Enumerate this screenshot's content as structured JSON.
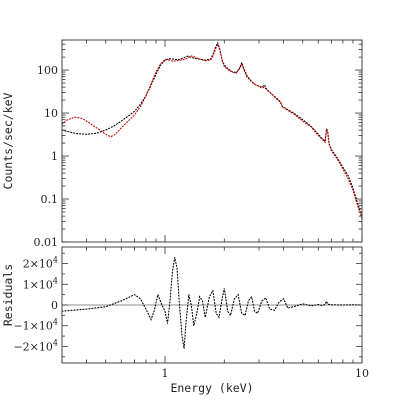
{
  "chart_data": [
    {
      "type": "line",
      "panel": "spectrum",
      "ylabel": "Counts/sec/keV",
      "x_scale": "log",
      "y_scale": "log",
      "xlim": [
        0.3,
        10
      ],
      "ylim": [
        0.01,
        500
      ],
      "y_ticks": [
        0.01,
        0.1,
        1,
        10,
        100
      ],
      "y_tick_labels": [
        "0.01",
        "0.1",
        "1",
        "10",
        "100"
      ],
      "series": [
        {
          "color": "#000000",
          "style": "dotted",
          "points": [
            [
              0.3,
              4.0
            ],
            [
              0.33,
              3.6
            ],
            [
              0.36,
              3.3
            ],
            [
              0.4,
              3.2
            ],
            [
              0.45,
              3.4
            ],
            [
              0.5,
              4.0
            ],
            [
              0.55,
              5.0
            ],
            [
              0.6,
              6.5
            ],
            [
              0.65,
              8.5
            ],
            [
              0.7,
              11
            ],
            [
              0.75,
              16
            ],
            [
              0.8,
              25
            ],
            [
              0.85,
              45
            ],
            [
              0.9,
              80
            ],
            [
              0.95,
              130
            ],
            [
              1.0,
              170
            ],
            [
              1.05,
              185
            ],
            [
              1.1,
              180
            ],
            [
              1.15,
              175
            ],
            [
              1.2,
              180
            ],
            [
              1.25,
              195
            ],
            [
              1.3,
              210
            ],
            [
              1.35,
              200
            ],
            [
              1.4,
              190
            ],
            [
              1.45,
              185
            ],
            [
              1.5,
              180
            ],
            [
              1.6,
              170
            ],
            [
              1.7,
              180
            ],
            [
              1.75,
              230
            ],
            [
              1.8,
              330
            ],
            [
              1.85,
              430
            ],
            [
              1.9,
              300
            ],
            [
              1.95,
              170
            ],
            [
              2.0,
              130
            ],
            [
              2.1,
              105
            ],
            [
              2.2,
              90
            ],
            [
              2.3,
              88
            ],
            [
              2.4,
              110
            ],
            [
              2.45,
              150
            ],
            [
              2.5,
              115
            ],
            [
              2.6,
              75
            ],
            [
              2.7,
              60
            ],
            [
              2.8,
              50
            ],
            [
              2.9,
              45
            ],
            [
              3.0,
              42
            ],
            [
              3.1,
              40
            ],
            [
              3.2,
              45
            ],
            [
              3.3,
              35
            ],
            [
              3.5,
              27
            ],
            [
              3.7,
              22
            ],
            [
              3.85,
              18
            ],
            [
              3.95,
              14
            ],
            [
              4.2,
              12
            ],
            [
              4.5,
              10
            ],
            [
              5.0,
              7
            ],
            [
              5.5,
              5
            ],
            [
              6.0,
              3.2
            ],
            [
              6.3,
              2.5
            ],
            [
              6.5,
              2.2
            ],
            [
              6.6,
              4.2
            ],
            [
              6.7,
              3.8
            ],
            [
              6.8,
              2.0
            ],
            [
              7.0,
              1.4
            ],
            [
              7.5,
              0.9
            ],
            [
              8.0,
              0.55
            ],
            [
              8.5,
              0.35
            ],
            [
              9.0,
              0.18
            ],
            [
              9.5,
              0.08
            ],
            [
              10.0,
              0.04
            ]
          ]
        },
        {
          "color": "#cc0000",
          "style": "dotted",
          "points": [
            [
              0.3,
              5.5
            ],
            [
              0.32,
              7.0
            ],
            [
              0.35,
              8.0
            ],
            [
              0.38,
              7.5
            ],
            [
              0.4,
              6.5
            ],
            [
              0.45,
              4.5
            ],
            [
              0.5,
              3.2
            ],
            [
              0.53,
              2.8
            ],
            [
              0.56,
              3.2
            ],
            [
              0.6,
              4.5
            ],
            [
              0.65,
              6.5
            ],
            [
              0.7,
              9
            ],
            [
              0.75,
              14
            ],
            [
              0.8,
              25
            ],
            [
              0.85,
              48
            ],
            [
              0.9,
              90
            ],
            [
              0.95,
              140
            ],
            [
              1.0,
              175
            ],
            [
              1.05,
              170
            ],
            [
              1.1,
              160
            ],
            [
              1.15,
              165
            ],
            [
              1.2,
              170
            ],
            [
              1.25,
              175
            ],
            [
              1.3,
              190
            ],
            [
              1.35,
              215
            ],
            [
              1.4,
              205
            ],
            [
              1.45,
              190
            ],
            [
              1.5,
              180
            ],
            [
              1.6,
              165
            ],
            [
              1.7,
              170
            ],
            [
              1.75,
              210
            ],
            [
              1.8,
              300
            ],
            [
              1.85,
              400
            ],
            [
              1.9,
              290
            ],
            [
              1.95,
              170
            ],
            [
              2.0,
              120
            ],
            [
              2.1,
              100
            ],
            [
              2.2,
              90
            ],
            [
              2.3,
              85
            ],
            [
              2.4,
              115
            ],
            [
              2.45,
              140
            ],
            [
              2.5,
              110
            ],
            [
              2.6,
              70
            ],
            [
              2.7,
              58
            ],
            [
              2.8,
              50
            ],
            [
              2.9,
              45
            ],
            [
              3.0,
              42
            ],
            [
              3.1,
              38
            ],
            [
              3.2,
              40
            ],
            [
              3.3,
              34
            ],
            [
              3.5,
              27
            ],
            [
              3.7,
              21
            ],
            [
              3.85,
              19
            ],
            [
              3.95,
              14
            ],
            [
              4.2,
              11.5
            ],
            [
              4.5,
              9.5
            ],
            [
              5.0,
              6.5
            ],
            [
              5.5,
              4.8
            ],
            [
              6.0,
              3.0
            ],
            [
              6.3,
              2.4
            ],
            [
              6.5,
              2.1
            ],
            [
              6.6,
              4.0
            ],
            [
              6.7,
              3.5
            ],
            [
              6.8,
              1.9
            ],
            [
              7.0,
              1.3
            ],
            [
              7.5,
              0.85
            ],
            [
              8.0,
              0.5
            ],
            [
              8.5,
              0.3
            ],
            [
              9.0,
              0.16
            ],
            [
              9.5,
              0.07
            ],
            [
              10.0,
              0.035
            ]
          ]
        }
      ]
    },
    {
      "type": "line",
      "panel": "residuals",
      "xlabel": "Energy (keV)",
      "ylabel": "Residuals",
      "x_scale": "log",
      "xlim": [
        0.3,
        10
      ],
      "ylim": [
        -28000,
        28000
      ],
      "x_ticks": [
        1,
        10
      ],
      "x_tick_labels": [
        "1",
        "10"
      ],
      "y_ticks": [
        {
          "value": 20000,
          "mantissa": "2×10",
          "exp": "4"
        },
        {
          "value": 10000,
          "mantissa": "1×10",
          "exp": "4"
        },
        {
          "value": 0,
          "mantissa": "0",
          "exp": ""
        },
        {
          "value": -10000,
          "mantissa": "−1×10",
          "exp": "4"
        },
        {
          "value": -20000,
          "mantissa": "−2×10",
          "exp": "4"
        }
      ],
      "series": [
        {
          "color": "#000000",
          "style": "dotted",
          "points": [
            [
              0.3,
              -3000
            ],
            [
              0.4,
              -2000
            ],
            [
              0.5,
              -800
            ],
            [
              0.6,
              2000
            ],
            [
              0.7,
              5000
            ],
            [
              0.75,
              3000
            ],
            [
              0.8,
              -2000
            ],
            [
              0.85,
              -7000
            ],
            [
              0.88,
              -3000
            ],
            [
              0.92,
              5000
            ],
            [
              0.96,
              500
            ],
            [
              1.0,
              -3000
            ],
            [
              1.03,
              -9000
            ],
            [
              1.06,
              2000
            ],
            [
              1.09,
              16000
            ],
            [
              1.12,
              23000
            ],
            [
              1.15,
              18000
            ],
            [
              1.18,
              2000
            ],
            [
              1.22,
              -15000
            ],
            [
              1.25,
              -21000
            ],
            [
              1.28,
              -8000
            ],
            [
              1.32,
              5000
            ],
            [
              1.36,
              0
            ],
            [
              1.4,
              -10000
            ],
            [
              1.45,
              -4000
            ],
            [
              1.5,
              4000
            ],
            [
              1.55,
              2000
            ],
            [
              1.6,
              -6000
            ],
            [
              1.68,
              4000
            ],
            [
              1.75,
              7000
            ],
            [
              1.82,
              -4000
            ],
            [
              1.88,
              -6000
            ],
            [
              1.95,
              3000
            ],
            [
              2.0,
              8000
            ],
            [
              2.08,
              -3000
            ],
            [
              2.15,
              -5000
            ],
            [
              2.25,
              3000
            ],
            [
              2.35,
              5000
            ],
            [
              2.45,
              -4000
            ],
            [
              2.55,
              -5000
            ],
            [
              2.65,
              2000
            ],
            [
              2.75,
              4000
            ],
            [
              2.85,
              -3000
            ],
            [
              2.95,
              -4000
            ],
            [
              3.1,
              2000
            ],
            [
              3.25,
              3500
            ],
            [
              3.4,
              -2000
            ],
            [
              3.6,
              -2500
            ],
            [
              3.8,
              1500
            ],
            [
              4.0,
              3000
            ],
            [
              4.2,
              -1500
            ],
            [
              4.5,
              -800
            ],
            [
              5.0,
              600
            ],
            [
              5.5,
              -400
            ],
            [
              6.0,
              200
            ],
            [
              6.3,
              -300
            ],
            [
              6.5,
              400
            ],
            [
              6.6,
              1800
            ],
            [
              6.7,
              400
            ],
            [
              7.0,
              100
            ],
            [
              8.0,
              0
            ],
            [
              9.0,
              100
            ],
            [
              10.0,
              0
            ]
          ]
        }
      ]
    }
  ]
}
